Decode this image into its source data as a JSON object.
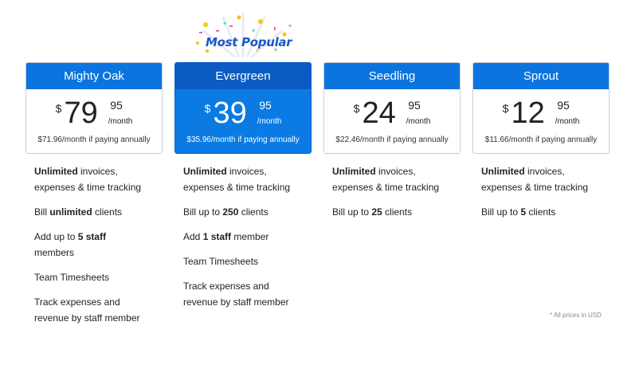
{
  "badge": {
    "label": "Most Popular"
  },
  "plans": [
    {
      "name": "Mighty Oak",
      "currency": "$",
      "dollars": "79",
      "cents": "95",
      "period": "/month",
      "annual": "$71.96/month if paying annually",
      "popular": false,
      "features": [
        [
          {
            "t": "Unlimited",
            "b": true
          },
          {
            "t": " invoices, expenses & time tracking",
            "b": false
          }
        ],
        [
          {
            "t": "Bill ",
            "b": false
          },
          {
            "t": "unlimited",
            "b": true
          },
          {
            "t": " clients",
            "b": false
          }
        ],
        [
          {
            "t": "Add up to ",
            "b": false
          },
          {
            "t": "5 staff",
            "b": true
          },
          {
            "t": " members",
            "b": false
          }
        ],
        [
          {
            "t": "Team Timesheets",
            "b": false
          }
        ],
        [
          {
            "t": "Track expenses and revenue by staff member",
            "b": false
          }
        ]
      ]
    },
    {
      "name": "Evergreen",
      "currency": "$",
      "dollars": "39",
      "cents": "95",
      "period": "/month",
      "annual": "$35.96/month if paying annually",
      "popular": true,
      "features": [
        [
          {
            "t": "Unlimited",
            "b": true
          },
          {
            "t": " invoices, expenses & time tracking",
            "b": false
          }
        ],
        [
          {
            "t": "Bill up to ",
            "b": false
          },
          {
            "t": "250",
            "b": true
          },
          {
            "t": " clients",
            "b": false
          }
        ],
        [
          {
            "t": "Add ",
            "b": false
          },
          {
            "t": "1 staff",
            "b": true
          },
          {
            "t": " member",
            "b": false
          }
        ],
        [
          {
            "t": "Team Timesheets",
            "b": false
          }
        ],
        [
          {
            "t": "Track expenses and revenue by staff member",
            "b": false
          }
        ]
      ]
    },
    {
      "name": "Seedling",
      "currency": "$",
      "dollars": "24",
      "cents": "95",
      "period": "/month",
      "annual": "$22.46/month if paying annually",
      "popular": false,
      "features": [
        [
          {
            "t": "Unlimited",
            "b": true
          },
          {
            "t": " invoices, expenses & time tracking",
            "b": false
          }
        ],
        [
          {
            "t": "Bill up to ",
            "b": false
          },
          {
            "t": "25",
            "b": true
          },
          {
            "t": " clients",
            "b": false
          }
        ]
      ]
    },
    {
      "name": "Sprout",
      "currency": "$",
      "dollars": "12",
      "cents": "95",
      "period": "/month",
      "annual": "$11.66/month if paying annually",
      "popular": false,
      "features": [
        [
          {
            "t": "Unlimited",
            "b": true
          },
          {
            "t": " invoices, expenses & time tracking",
            "b": false
          }
        ],
        [
          {
            "t": "Bill up to ",
            "b": false
          },
          {
            "t": "5",
            "b": true
          },
          {
            "t": " clients",
            "b": false
          }
        ]
      ]
    }
  ],
  "footnote": "* All prices in USD",
  "colors": {
    "header": "#0b74de",
    "popular_header": "#0a5bc4",
    "popular_body": "#0b7be3",
    "badge_text": "#1b56c9"
  }
}
